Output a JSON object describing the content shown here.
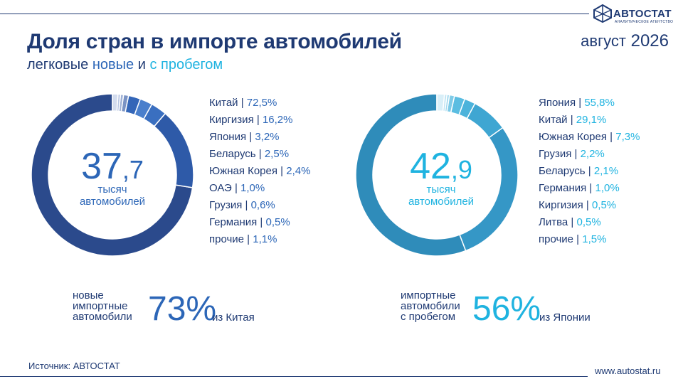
{
  "header": {
    "logo_text": "АВТОСТАТ",
    "logo_sub": "АНАЛИТИЧЕСКОЕ АГЕНТСТВО",
    "title": "Доля стран в импорте автомобилей",
    "subtitle_prefix": "легковые",
    "subtitle_new": "новые",
    "subtitle_and": "и",
    "subtitle_used": "с пробегом",
    "period_month": "август",
    "period_year": "2026"
  },
  "colors": {
    "navy": "#1f3a73",
    "new_accent": "#2c66b7",
    "used_accent": "#1fb3e0"
  },
  "chart_data": [
    {
      "type": "pie",
      "center_value_int": "37",
      "center_value_frac": ",7",
      "center_label_1": "тысяч",
      "center_label_2": "автомобилей",
      "categories": [
        "Китай",
        "Киргизия",
        "Япония",
        "Беларусь",
        "Южная Корея",
        "ОАЭ",
        "Грузия",
        "Германия",
        "прочие"
      ],
      "values": [
        72.5,
        16.2,
        3.2,
        2.5,
        2.4,
        1.0,
        0.6,
        0.5,
        1.1
      ],
      "labels": [
        "72,5%",
        "16,2%",
        "3,2%",
        "2,5%",
        "2,4%",
        "1,0%",
        "0,6%",
        "0,5%",
        "1,1%"
      ],
      "colors": [
        "#2b4a8c",
        "#2e5aa8",
        "#3a6fc0",
        "#4a7fcc",
        "#3466b8",
        "#7a93c4",
        "#9fb1d6",
        "#b8c6e2",
        "#d3dcee"
      ]
    },
    {
      "type": "pie",
      "center_value_int": "42",
      "center_value_frac": ",9",
      "center_label_1": "тысяч",
      "center_label_2": "автомобилей",
      "categories": [
        "Япония",
        "Китай",
        "Южная Корея",
        "Грузия",
        "Беларусь",
        "Германия",
        "Киргизия",
        "Литва",
        "прочие"
      ],
      "values": [
        55.8,
        29.1,
        7.3,
        2.2,
        2.1,
        1.0,
        0.5,
        0.5,
        1.5
      ],
      "labels": [
        "55,8%",
        "29,1%",
        "7,3%",
        "2,2%",
        "2,1%",
        "1,0%",
        "0,5%",
        "0,5%",
        "1,5%"
      ],
      "colors": [
        "#2f8cba",
        "#3597c6",
        "#3fa6d2",
        "#4cb3db",
        "#5bbde1",
        "#7fcbe7",
        "#a1d8ee",
        "#bfe4f3",
        "#d9eff8"
      ]
    }
  ],
  "bottom_left": {
    "caption_1": "новые",
    "caption_2": "импортные",
    "caption_3": "автомобили",
    "big_int": "73",
    "big_pct": "%",
    "tail": "из Китая"
  },
  "bottom_right": {
    "caption_1": "импортные",
    "caption_2": "автомобили",
    "caption_3": "с пробегом",
    "big_int": "56",
    "big_pct": "%",
    "tail": "из Японии"
  },
  "footer": {
    "source": "Источник: АВТОСТАТ",
    "site": "www.autostat.ru"
  }
}
